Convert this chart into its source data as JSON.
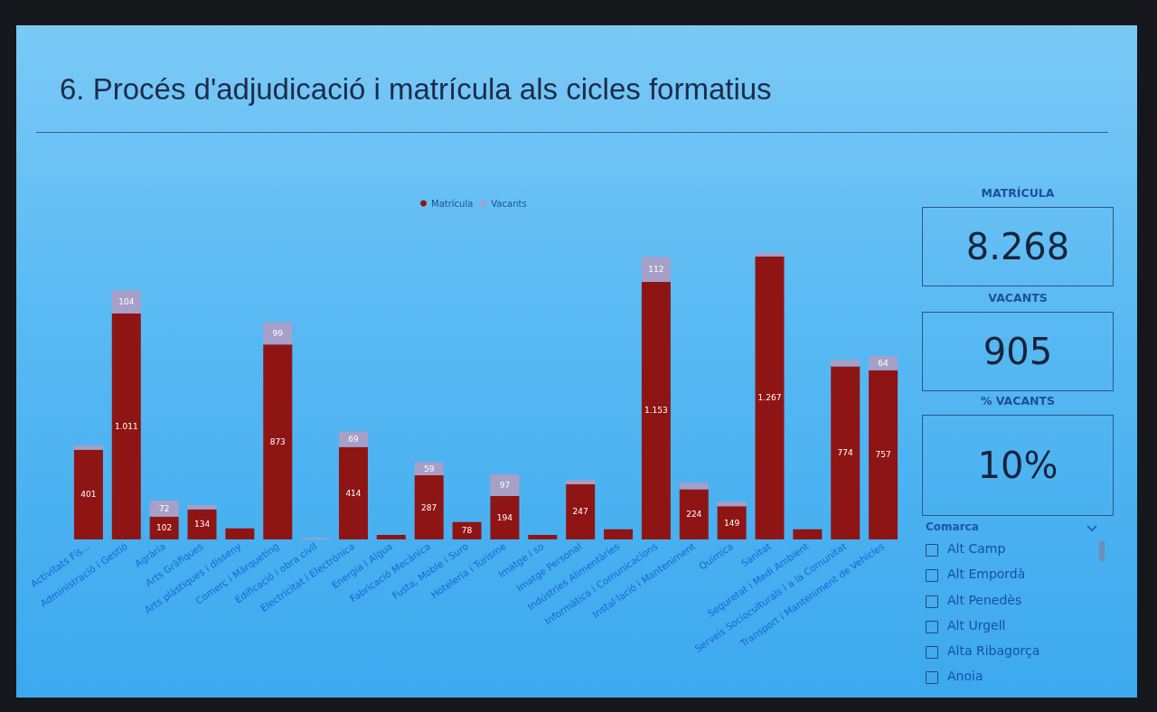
{
  "chart_data": [
    {
      "type": "bar",
      "title": "6. Procés d'adjudicació i matrícula als cicles formatius",
      "categories": [
        "Activitats Fís...",
        "Administració i Gestió",
        "Agrària",
        "Arts Gràfiques",
        "Arts plàstiques i disseny",
        "Comerç i Màrqueting",
        "Edificació i obra civil",
        "Electricitat i Electrònica",
        "Energia i Aigua",
        "Fabricació Mecànica",
        "Fusta, Moble i Suro",
        "Hoteleria i Turisme",
        "Imatge i so",
        "Imatge Personal",
        "Indústries Alimentàries",
        "Informàtica i Comunicacions",
        "Instal·lació i Manteniment",
        "Química",
        "Sanitat",
        "Seguretat i Medi Ambient",
        "Serveis Socioculturals i a la Comunitat",
        "Transport i Manteniment de Vehicles"
      ],
      "stacked": true,
      "series": [
        {
          "name": "Matrícula",
          "color": "#8f1515",
          "values": [
            401,
            1011,
            102,
            134,
            50,
            873,
            null,
            414,
            20,
            287,
            78,
            194,
            20,
            247,
            45,
            1153,
            224,
            149,
            1267,
            45,
            774,
            757
          ],
          "value_labels": [
            "401",
            "1.011",
            "102",
            "134",
            null,
            "873",
            null,
            "414",
            null,
            "287",
            "78",
            "194",
            null,
            "247",
            null,
            "1.153",
            "224",
            "149",
            "1.267",
            null,
            "774",
            "757"
          ]
        },
        {
          "name": "Vacants",
          "color": "#a69fc8",
          "values": [
            20,
            104,
            72,
            20,
            null,
            99,
            6,
            69,
            null,
            59,
            null,
            97,
            null,
            20,
            null,
            112,
            30,
            20,
            15,
            null,
            30,
            64
          ],
          "value_labels": [
            null,
            "104",
            "72",
            null,
            null,
            "99",
            null,
            "69",
            null,
            "59",
            null,
            "97",
            null,
            null,
            null,
            "112",
            null,
            null,
            null,
            null,
            null,
            "64"
          ]
        }
      ],
      "legend": "top"
    },
    {
      "type": "other",
      "title": "MATRÍCULA",
      "annotations": [
        "8.268"
      ]
    },
    {
      "type": "other",
      "title": "VACANTS",
      "annotations": [
        "905"
      ]
    },
    {
      "type": "other",
      "title": "% VACANTS",
      "annotations": [
        "10%"
      ]
    },
    {
      "type": "other",
      "title": "Comarca",
      "annotations": [
        "Alt Camp",
        "Alt Empordà",
        "Alt Penedès",
        "Alt Urgell",
        "Alta Ribagorça",
        "Anoia"
      ]
    }
  ]
}
